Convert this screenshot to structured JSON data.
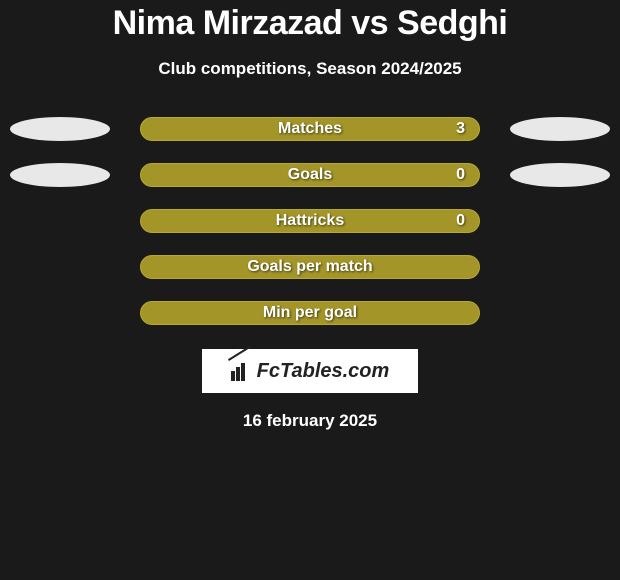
{
  "header": {
    "title": "Nima Mirzazad vs Sedghi",
    "subtitle": "Club competitions, Season 2024/2025"
  },
  "stats": {
    "bar_color": "#a39528",
    "bar_border": "#b8a830",
    "oval_color": "#e8e8e8",
    "rows": [
      {
        "label": "Matches",
        "value": "3",
        "show_ovals": true,
        "show_value": true
      },
      {
        "label": "Goals",
        "value": "0",
        "show_ovals": true,
        "show_value": true
      },
      {
        "label": "Hattricks",
        "value": "0",
        "show_ovals": false,
        "show_value": true
      },
      {
        "label": "Goals per match",
        "value": "",
        "show_ovals": false,
        "show_value": false
      },
      {
        "label": "Min per goal",
        "value": "",
        "show_ovals": false,
        "show_value": false
      }
    ]
  },
  "footer": {
    "logo_text": "FcTables.com",
    "date": "16 february 2025"
  },
  "colors": {
    "background": "#1a1a1a",
    "text": "#ffffff",
    "logo_bg": "#ffffff",
    "logo_fg": "#222222"
  }
}
